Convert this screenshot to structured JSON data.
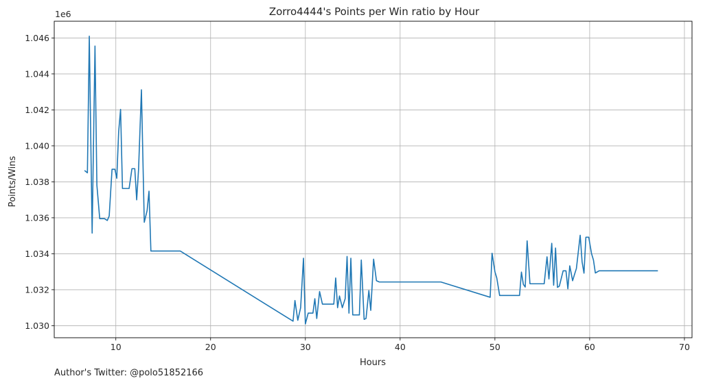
{
  "footer_text": "Author's Twitter: @polo51852166",
  "chart_data": {
    "type": "line",
    "title": "Zorro4444's Points per Win ratio by Hour",
    "xlabel": "Hours",
    "ylabel": "Points/Wins",
    "y_offset_text": "1e6",
    "xlim": [
      3.5,
      70.8
    ],
    "ylim": [
      1.02933,
      1.04693
    ],
    "x_ticks": [
      10,
      20,
      30,
      40,
      50,
      60,
      70
    ],
    "x_tick_labels": [
      "10",
      "20",
      "30",
      "40",
      "50",
      "60",
      "70"
    ],
    "y_ticks": [
      1.03,
      1.032,
      1.034,
      1.036,
      1.038,
      1.04,
      1.042,
      1.044,
      1.046
    ],
    "y_tick_labels": [
      "1.030",
      "1.032",
      "1.034",
      "1.036",
      "1.038",
      "1.040",
      "1.042",
      "1.044",
      "1.046"
    ],
    "grid": true,
    "line_color": "#1f77b4",
    "series": [
      {
        "x": [
          6.7,
          7.0,
          7.2,
          7.5,
          7.8,
          8.0,
          8.3,
          8.8,
          9.1,
          9.3,
          9.6,
          9.9,
          10.1,
          10.3,
          10.5,
          10.7,
          11.4,
          11.7,
          12.0,
          12.2,
          12.4,
          12.7,
          13.0,
          13.3,
          13.5,
          13.7,
          16.8,
          28.7,
          28.9,
          29.2,
          29.5,
          29.8,
          30.0,
          30.3,
          30.8,
          31.0,
          31.2,
          31.5,
          31.8,
          33.0,
          33.2,
          33.4,
          33.6,
          33.9,
          34.2,
          34.4,
          34.6,
          34.8,
          35.0,
          35.2,
          35.7,
          35.9,
          36.2,
          36.4,
          36.7,
          36.9,
          37.2,
          37.5,
          37.8,
          44.3,
          49.5,
          49.7,
          50.0,
          50.2,
          50.5,
          52.6,
          52.8,
          53.0,
          53.2,
          53.4,
          53.7,
          54.0,
          55.2,
          55.5,
          55.7,
          56.0,
          56.2,
          56.4,
          56.6,
          56.8,
          57.2,
          57.5,
          57.7,
          57.9,
          58.2,
          58.4,
          58.6,
          59.0,
          59.2,
          59.4,
          59.6,
          59.9,
          60.2,
          60.4,
          60.6,
          61.0,
          61.3,
          62.0,
          67.2
        ],
        "y": [
          1.03863,
          1.0385,
          1.0461,
          1.03515,
          1.04555,
          1.03782,
          1.03595,
          1.03595,
          1.03585,
          1.0361,
          1.0387,
          1.0387,
          1.0382,
          1.0408,
          1.04203,
          1.03763,
          1.03763,
          1.03873,
          1.03873,
          1.037,
          1.0387,
          1.04312,
          1.03575,
          1.0364,
          1.03748,
          1.03415,
          1.03415,
          1.03025,
          1.0314,
          1.0303,
          1.031,
          1.03375,
          1.0301,
          1.0307,
          1.0307,
          1.0315,
          1.0304,
          1.0319,
          1.0312,
          1.0312,
          1.03265,
          1.031,
          1.03165,
          1.031,
          1.0315,
          1.03385,
          1.0307,
          1.03375,
          1.0306,
          1.0306,
          1.0306,
          1.03365,
          1.03035,
          1.0304,
          1.03195,
          1.03085,
          1.0337,
          1.0325,
          1.03243,
          1.03243,
          1.03158,
          1.03403,
          1.033,
          1.03265,
          1.03168,
          1.03168,
          1.03298,
          1.0323,
          1.03215,
          1.03472,
          1.03233,
          1.03233,
          1.03233,
          1.03383,
          1.0326,
          1.03458,
          1.03225,
          1.03432,
          1.03213,
          1.0322,
          1.03305,
          1.03305,
          1.03205,
          1.03333,
          1.0325,
          1.03285,
          1.03318,
          1.03503,
          1.03355,
          1.03292,
          1.03492,
          1.03492,
          1.034,
          1.03365,
          1.03293,
          1.03305,
          1.03305,
          1.03305,
          1.03305
        ]
      }
    ]
  }
}
